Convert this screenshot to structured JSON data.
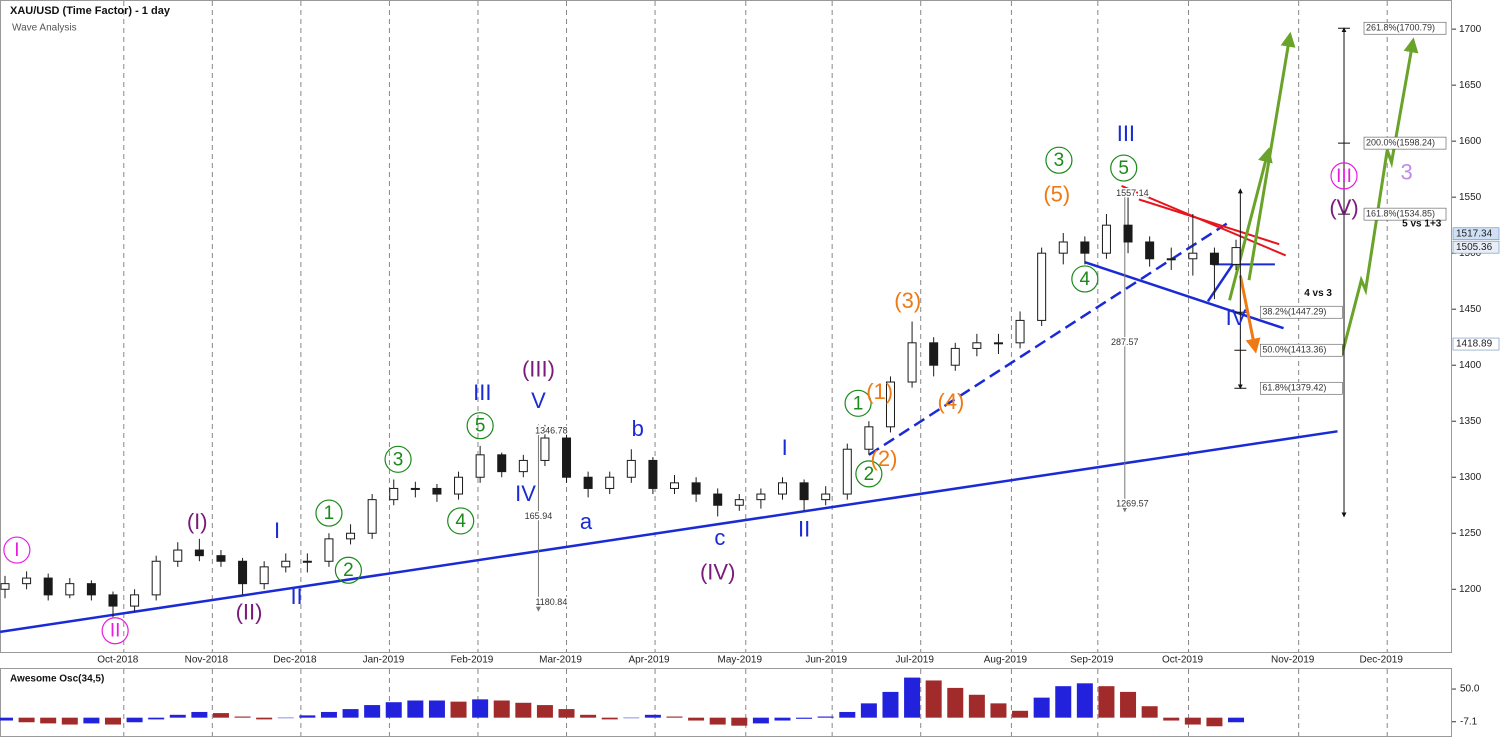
{
  "chart_data": {
    "type": "candlestick",
    "title": "XAU/USD (Time Factor) - 1 day",
    "subtitle": "Wave Analysis",
    "xlim": [
      0,
      67
    ],
    "ylim": [
      1144,
      1726
    ],
    "yticks": [
      1200,
      1250,
      1300,
      1350,
      1400,
      1450,
      1500,
      1550,
      1600,
      1650,
      1700
    ],
    "xticks": [
      {
        "value": 5.5,
        "label": "Oct-2018"
      },
      {
        "value": 9.6,
        "label": "Nov-2018"
      },
      {
        "value": 13.7,
        "label": "Dec-2018"
      },
      {
        "value": 17.8,
        "label": "Jan-2019"
      },
      {
        "value": 21.9,
        "label": "Feb-2019"
      },
      {
        "value": 26.0,
        "label": "Mar-2019"
      },
      {
        "value": 30.1,
        "label": "Apr-2019"
      },
      {
        "value": 34.3,
        "label": "May-2019"
      },
      {
        "value": 38.3,
        "label": "Jun-2019"
      },
      {
        "value": 42.4,
        "label": "Jul-2019"
      },
      {
        "value": 46.6,
        "label": "Aug-2019"
      },
      {
        "value": 50.6,
        "label": "Sep-2019"
      },
      {
        "value": 54.8,
        "label": "Oct-2019"
      },
      {
        "value": 59.9,
        "label": "Nov-2019"
      },
      {
        "value": 64.0,
        "label": "Dec-2019"
      }
    ],
    "vertical_grid": true,
    "up_color": "#1a1a1a",
    "down_color": "#1a1a1a",
    "up_fill": "#ffffff",
    "down_fill": "#1a1a1a",
    "open": [
      1200,
      1205,
      1210,
      1195,
      1205,
      1195,
      1185,
      1195,
      1225,
      1235,
      1230,
      1225,
      1205,
      1220,
      1225,
      1225,
      1245,
      1250,
      1280,
      1290,
      1290,
      1285,
      1300,
      1320,
      1305,
      1315,
      1335,
      1300,
      1290,
      1300,
      1315,
      1290,
      1295,
      1285,
      1275,
      1280,
      1285,
      1295,
      1280,
      1285,
      1325,
      1345,
      1385,
      1420,
      1400,
      1415,
      1420,
      1420,
      1440,
      1500,
      1510,
      1500,
      1525,
      1510,
      1495,
      1495,
      1500,
      1490
    ],
    "high": [
      1212,
      1216,
      1214,
      1210,
      1208,
      1198,
      1200,
      1230,
      1242,
      1245,
      1235,
      1228,
      1225,
      1232,
      1232,
      1250,
      1258,
      1285,
      1298,
      1296,
      1294,
      1305,
      1328,
      1322,
      1320,
      1346.78,
      1340,
      1305,
      1305,
      1325,
      1318,
      1302,
      1300,
      1290,
      1285,
      1290,
      1300,
      1298,
      1292,
      1330,
      1350,
      1390,
      1439,
      1425,
      1420,
      1428,
      1428,
      1448,
      1505,
      1518,
      1515,
      1535,
      1557,
      1515,
      1505,
      1535,
      1505,
      1512
    ],
    "low": [
      1192,
      1200,
      1190,
      1192,
      1190,
      1175,
      1180,
      1190,
      1220,
      1225,
      1220,
      1195,
      1200,
      1215,
      1215,
      1220,
      1240,
      1245,
      1275,
      1282,
      1278,
      1280,
      1295,
      1300,
      1300,
      1310,
      1295,
      1282,
      1285,
      1295,
      1285,
      1285,
      1278,
      1265,
      1270,
      1272,
      1280,
      1270,
      1275,
      1280,
      1320,
      1340,
      1380,
      1390,
      1395,
      1408,
      1410,
      1415,
      1435,
      1490,
      1490,
      1495,
      1500,
      1488,
      1485,
      1480,
      1459,
      1485
    ],
    "close": [
      1205,
      1210,
      1195,
      1205,
      1195,
      1185,
      1195,
      1225,
      1235,
      1230,
      1225,
      1205,
      1220,
      1225,
      1225,
      1245,
      1250,
      1280,
      1290,
      1290,
      1285,
      1300,
      1320,
      1305,
      1315,
      1335,
      1300,
      1290,
      1300,
      1315,
      1290,
      1295,
      1285,
      1275,
      1280,
      1285,
      1295,
      1280,
      1285,
      1325,
      1345,
      1385,
      1420,
      1400,
      1415,
      1420,
      1420,
      1440,
      1500,
      1510,
      1500,
      1525,
      1510,
      1495,
      1495,
      1500,
      1490,
      1505
    ],
    "current_prices": [
      {
        "value": 1517.34,
        "color": "#cfe0f5"
      },
      {
        "value": 1505.36,
        "color": "#e8eef7"
      },
      {
        "value": 1418.89,
        "color": "#ffffff"
      }
    ],
    "lines": [
      {
        "color": "#1a2bd6",
        "width": 2.5,
        "points": [
          [
            -0.23,
            1162
          ],
          [
            61.7,
            1341
          ]
        ]
      },
      {
        "color": "#1a2bd6",
        "width": 2.5,
        "dash": true,
        "points": [
          [
            40,
            1320
          ],
          [
            56.7,
            1528
          ]
        ]
      },
      {
        "color": "#1a2bd6",
        "width": 2.5,
        "points": [
          [
            50,
            1492
          ],
          [
            59.2,
            1433
          ]
        ]
      },
      {
        "color": "#1a2bd6",
        "width": 2.5,
        "points": [
          [
            55.7,
            1457
          ],
          [
            57.3,
            1503
          ]
        ]
      },
      {
        "color": "#1a2bd6",
        "width": 2,
        "points": [
          [
            55.9,
            1490
          ],
          [
            58.8,
            1490
          ]
        ]
      },
      {
        "color": "#e8141c",
        "width": 2,
        "points": [
          [
            51.7,
            1560
          ],
          [
            59.3,
            1498
          ]
        ]
      },
      {
        "color": "#e8141c",
        "width": 2,
        "points": [
          [
            52.5,
            1548
          ],
          [
            59.0,
            1508
          ]
        ]
      },
      {
        "color": "#6aa329",
        "width": 3,
        "arrow": true,
        "points": [
          [
            56.7,
            1458
          ],
          [
            58.5,
            1592
          ]
        ]
      },
      {
        "color": "#6aa329",
        "width": 3,
        "arrow": true,
        "points": [
          [
            57.6,
            1476
          ],
          [
            59.5,
            1695
          ]
        ]
      },
      {
        "color": "#6aa329",
        "width": 3,
        "arrow": true,
        "points": [
          [
            61.9,
            1409
          ],
          [
            62.8,
            1476
          ],
          [
            63.0,
            1467
          ],
          [
            64.0,
            1592
          ],
          [
            64.2,
            1581
          ],
          [
            65.2,
            1690
          ]
        ]
      },
      {
        "color": "#ef7a14",
        "width": 3,
        "arrow": true,
        "points": [
          [
            57.2,
            1480
          ],
          [
            57.9,
            1413
          ]
        ]
      },
      {
        "color": "#777777",
        "width": 1,
        "arrow": true,
        "points": [
          [
            24.7,
            1346.78
          ],
          [
            24.7,
            1180.84
          ]
        ]
      },
      {
        "color": "#777777",
        "width": 1,
        "arrow": true,
        "points": [
          [
            51.85,
            1557.14
          ],
          [
            51.85,
            1269.57
          ]
        ]
      },
      {
        "color": "#111111",
        "width": 1,
        "arrow": true,
        "points": [
          [
            57.2,
            1557
          ],
          [
            57.2,
            1379.42
          ]
        ]
      },
      {
        "color": "#111111",
        "width": 1,
        "arrow": true,
        "points": [
          [
            62.0,
            1700.79
          ],
          [
            62.0,
            1265
          ]
        ]
      }
    ],
    "fib_levels": [
      {
        "label": "261.8%(1700.79)",
        "value": 1700.79,
        "x": 62.0
      },
      {
        "label": "200.0%(1598.24)",
        "value": 1598.24,
        "x": 62.0
      },
      {
        "label": "161.8%(1534.85)",
        "value": 1534.85,
        "x": 62.0
      },
      {
        "label": "38.2%(1447.29)",
        "value": 1447.29,
        "x": 57.2
      },
      {
        "label": "50.0%(1413.36)",
        "value": 1413.36,
        "x": 57.2
      },
      {
        "label": "61.8%(1379.42)",
        "value": 1379.42,
        "x": 57.2
      }
    ],
    "measure_labels": [
      {
        "value": 1346.78,
        "x": 25.3,
        "y": 1341
      },
      {
        "value": 165.94,
        "x": 24.7,
        "y": 1265
      },
      {
        "value": 1180.84,
        "x": 25.3,
        "y": 1188
      },
      {
        "value": 1557.14,
        "x": 52.2,
        "y": 1553
      },
      {
        "value": 287.57,
        "x": 51.85,
        "y": 1420
      },
      {
        "value": 1269.57,
        "x": 52.2,
        "y": 1276
      }
    ],
    "notes": [
      {
        "text": "5 vs 1+3",
        "x": 65.6,
        "y": 1526
      },
      {
        "text": "4 vs 3",
        "x": 60.8,
        "y": 1464
      }
    ],
    "annotations": [
      {
        "text": "I",
        "color": "#e81ce0",
        "x": 0.55,
        "y": 1235,
        "circled": true
      },
      {
        "text": "II",
        "color": "#e81ce0",
        "x": 5.1,
        "y": 1163,
        "circled": true
      },
      {
        "text": "(I)",
        "color": "#7a1a7a",
        "x": 8.9,
        "y": 1260
      },
      {
        "text": "(II)",
        "color": "#7a1a7a",
        "x": 11.3,
        "y": 1179
      },
      {
        "text": "I",
        "color": "#1a2bd6",
        "x": 12.6,
        "y": 1252
      },
      {
        "text": "II",
        "color": "#1a2bd6",
        "x": 13.5,
        "y": 1193
      },
      {
        "text": "1",
        "color": "#1a8a1a",
        "x": 15.0,
        "y": 1268,
        "circled": true
      },
      {
        "text": "2",
        "color": "#1a8a1a",
        "x": 15.9,
        "y": 1217,
        "circled": true
      },
      {
        "text": "3",
        "color": "#1a8a1a",
        "x": 18.2,
        "y": 1316,
        "circled": true
      },
      {
        "text": "4",
        "color": "#1a8a1a",
        "x": 21.1,
        "y": 1261,
        "circled": true
      },
      {
        "text": "5",
        "color": "#1a8a1a",
        "x": 22.0,
        "y": 1346,
        "circled": true
      },
      {
        "text": "III",
        "color": "#1a2bd6",
        "x": 22.1,
        "y": 1375
      },
      {
        "text": "(III)",
        "color": "#7a1a7a",
        "x": 24.7,
        "y": 1396
      },
      {
        "text": "V",
        "color": "#1a2bd6",
        "x": 24.7,
        "y": 1368
      },
      {
        "text": "IV",
        "color": "#1a2bd6",
        "x": 24.1,
        "y": 1285
      },
      {
        "text": "a",
        "color": "#1a2bd6",
        "x": 26.9,
        "y": 1260
      },
      {
        "text": "b",
        "color": "#1a2bd6",
        "x": 29.3,
        "y": 1343
      },
      {
        "text": "c",
        "color": "#1a2bd6",
        "x": 33.1,
        "y": 1245.5
      },
      {
        "text": "(IV)",
        "color": "#7a1a7a",
        "x": 33.0,
        "y": 1215
      },
      {
        "text": "I",
        "color": "#1a2bd6",
        "x": 36.1,
        "y": 1326
      },
      {
        "text": "II",
        "color": "#1a2bd6",
        "x": 37.0,
        "y": 1253
      },
      {
        "text": "1",
        "color": "#1a8a1a",
        "x": 39.5,
        "y": 1366,
        "circled": true
      },
      {
        "text": "(1)",
        "color": "#ef7a14",
        "x": 40.5,
        "y": 1376
      },
      {
        "text": "2",
        "color": "#1a8a1a",
        "x": 40.0,
        "y": 1303,
        "circled": true
      },
      {
        "text": "(2)",
        "color": "#ef7a14",
        "x": 40.7,
        "y": 1316
      },
      {
        "text": "(3)",
        "color": "#ef7a14",
        "x": 41.8,
        "y": 1457
      },
      {
        "text": "(4)",
        "color": "#ef7a14",
        "x": 43.8,
        "y": 1367
      },
      {
        "text": "(5)",
        "color": "#ef7a14",
        "x": 48.7,
        "y": 1552
      },
      {
        "text": "3",
        "color": "#1a8a1a",
        "x": 48.8,
        "y": 1583,
        "circled": true
      },
      {
        "text": "4",
        "color": "#1a8a1a",
        "x": 50.0,
        "y": 1477,
        "circled": true
      },
      {
        "text": "III",
        "color": "#1a2bd6",
        "x": 51.9,
        "y": 1606
      },
      {
        "text": "5",
        "color": "#1a8a1a",
        "x": 51.8,
        "y": 1576,
        "circled": true
      },
      {
        "text": "IV",
        "color": "#1a2bd6",
        "x": 57.0,
        "y": 1442
      },
      {
        "text": "III",
        "color": "#e81ce0",
        "x": 62.0,
        "y": 1569,
        "circled": true
      },
      {
        "text": "(V)",
        "color": "#7a1a7a",
        "x": 62.0,
        "y": 1540
      },
      {
        "text": "3",
        "color": "#c08ae8",
        "x": 64.9,
        "y": 1572
      }
    ],
    "oscillator": {
      "title": "Awesome Osc(34,5)",
      "ylim": [
        -32,
        85
      ],
      "yticks": [
        {
          "value": 50,
          "label": "50.0"
        },
        {
          "value": -7.1,
          "label": "-7.1"
        }
      ],
      "up_color": "#2222dd",
      "down_color": "#a12a2a",
      "values": [
        -5,
        -8,
        -10,
        -12,
        -10,
        -12,
        -8,
        -3,
        5,
        10,
        8,
        2,
        -3,
        0,
        4,
        10,
        15,
        22,
        27,
        30,
        30,
        28,
        32,
        30,
        26,
        22,
        15,
        5,
        -3,
        0,
        5,
        2,
        -5,
        -12,
        -14,
        -10,
        -5,
        -2,
        2,
        10,
        25,
        45,
        70,
        65,
        52,
        40,
        25,
        12,
        35,
        55,
        60,
        55,
        45,
        20,
        -5,
        -12,
        -15,
        -8
      ]
    }
  }
}
